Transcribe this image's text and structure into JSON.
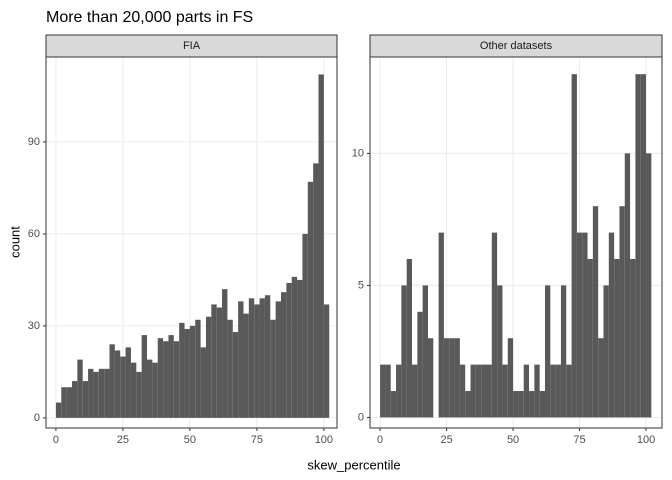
{
  "title": "More than 20,000 parts in FS",
  "x_label": "skew_percentile",
  "y_label": "count",
  "chart_data": [
    {
      "type": "histogram",
      "strip": "FIA",
      "color": "#595959",
      "bins": [
        0,
        2,
        4,
        6,
        8,
        10,
        12,
        14,
        16,
        18,
        20,
        22,
        24,
        26,
        28,
        30,
        32,
        34,
        36,
        38,
        40,
        42,
        44,
        46,
        48,
        50,
        52,
        54,
        56,
        58,
        60,
        62,
        64,
        66,
        68,
        70,
        72,
        74,
        76,
        78,
        80,
        82,
        84,
        86,
        88,
        90,
        92,
        94,
        96,
        98,
        100,
        102
      ],
      "values": [
        5,
        10,
        10,
        12,
        19,
        12,
        16,
        15,
        16,
        16,
        24,
        22,
        20,
        23,
        18,
        15,
        27,
        19,
        18,
        26,
        25,
        27,
        25,
        31,
        29,
        30,
        32,
        23,
        33,
        37,
        36,
        42,
        32,
        28,
        38,
        34,
        39,
        37,
        39,
        40,
        32,
        38,
        41,
        44,
        46,
        45,
        60,
        77,
        83,
        112,
        37
      ],
      "xlim": [
        -3.7,
        104.9
      ],
      "ylim": [
        -3.3,
        117.7
      ],
      "xticks": [
        0,
        25,
        50,
        75,
        100
      ],
      "yticks": [
        0,
        30,
        60,
        90
      ],
      "grid": true
    },
    {
      "type": "histogram",
      "strip": "Other datasets",
      "color": "#595959",
      "bins": [
        0,
        2,
        4,
        6,
        8,
        10,
        12,
        14,
        16,
        18,
        20,
        22,
        24,
        26,
        28,
        30,
        32,
        34,
        36,
        38,
        40,
        42,
        44,
        46,
        48,
        50,
        52,
        54,
        56,
        58,
        60,
        62,
        64,
        66,
        68,
        70,
        72,
        74,
        76,
        78,
        80,
        82,
        84,
        86,
        88,
        90,
        92,
        94,
        96,
        98,
        100,
        102
      ],
      "values": [
        2,
        2,
        1,
        2,
        5,
        6,
        2,
        4,
        5,
        3,
        0,
        7,
        3,
        3,
        3,
        2,
        1,
        2,
        2,
        2,
        2,
        7,
        5,
        2,
        3,
        1,
        1,
        2,
        1,
        2,
        1,
        5,
        2,
        2,
        5,
        2,
        13,
        7,
        7,
        6,
        8,
        3,
        5,
        7,
        6,
        8,
        10,
        6,
        13,
        13,
        10
      ],
      "xlim": [
        -3.8,
        106
      ],
      "ylim": [
        -0.4,
        13.65
      ],
      "xticks": [
        0,
        25,
        50,
        75,
        100
      ],
      "yticks": [
        0,
        5,
        10
      ],
      "grid": true
    }
  ]
}
